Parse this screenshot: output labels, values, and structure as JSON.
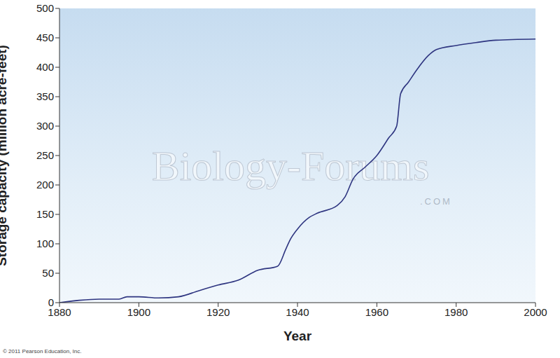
{
  "chart_data": {
    "type": "line",
    "x_label": "Year",
    "y_label": "Storage capacity (million acre-feet)",
    "x": [
      1880,
      1885,
      1890,
      1895,
      1897,
      1900,
      1905,
      1910,
      1915,
      1920,
      1925,
      1930,
      1935,
      1937,
      1938,
      1940,
      1943,
      1945,
      1950,
      1952,
      1954,
      1957,
      1960,
      1963,
      1965,
      1966,
      1968,
      1970,
      1973,
      1975,
      1980,
      1985,
      1990,
      2000
    ],
    "values": [
      0,
      4,
      6,
      6,
      10,
      10,
      8,
      10,
      20,
      30,
      38,
      55,
      62,
      90,
      105,
      125,
      145,
      152,
      165,
      180,
      210,
      230,
      250,
      280,
      300,
      355,
      375,
      395,
      420,
      430,
      437,
      442,
      446,
      448
    ],
    "color": "#2e3580",
    "xlim": [
      1880,
      2000
    ],
    "xticks": [
      1880,
      1900,
      1920,
      1940,
      1960,
      1980,
      2000
    ],
    "ylim": [
      0,
      500
    ],
    "yticks": [
      0,
      50,
      100,
      150,
      200,
      250,
      300,
      350,
      400,
      450,
      500
    ],
    "grid": false,
    "annotations": [
      "Biology-Forums",
      ".COM",
      "© 2011 Pearson Education, Inc."
    ]
  }
}
